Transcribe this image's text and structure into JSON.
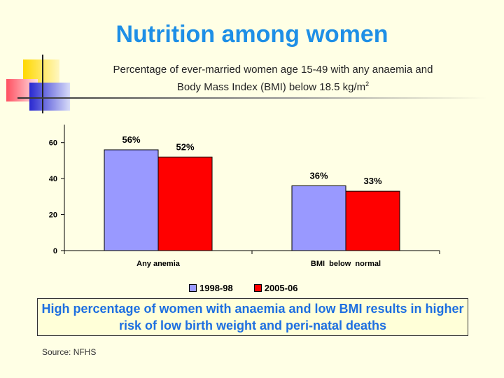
{
  "slide": {
    "title": "Nutrition among women",
    "subtitle_line1": "Percentage of ever-married women age 15-49 with any anaemia and",
    "subtitle_line2": "Body Mass Index (BMI) below 18.5 kg/m",
    "subtitle_sup": "2",
    "callout": "High percentage of women with anaemia and low BMI results in higher risk of low birth weight and peri-natal deaths",
    "source": "Source: NFHS"
  },
  "chart_data": {
    "type": "bar",
    "categories": [
      "Any anemia",
      "BMI  below  normal"
    ],
    "series": [
      {
        "name": "1998-98",
        "values": [
          56,
          36
        ],
        "labels": [
          "56%",
          "36%"
        ],
        "color": "#9999FF"
      },
      {
        "name": "2005-06",
        "values": [
          52,
          33
        ],
        "labels": [
          "52%",
          "33%"
        ],
        "color": "#FF0000"
      }
    ],
    "ylim": [
      0,
      70
    ],
    "yticks": [
      0,
      20,
      40,
      60
    ],
    "grid": false,
    "legend_position": "bottom"
  },
  "colors": {
    "title": "#1E8FE6",
    "callout_text": "#1E6FE0",
    "background": "#FFFFE5"
  }
}
